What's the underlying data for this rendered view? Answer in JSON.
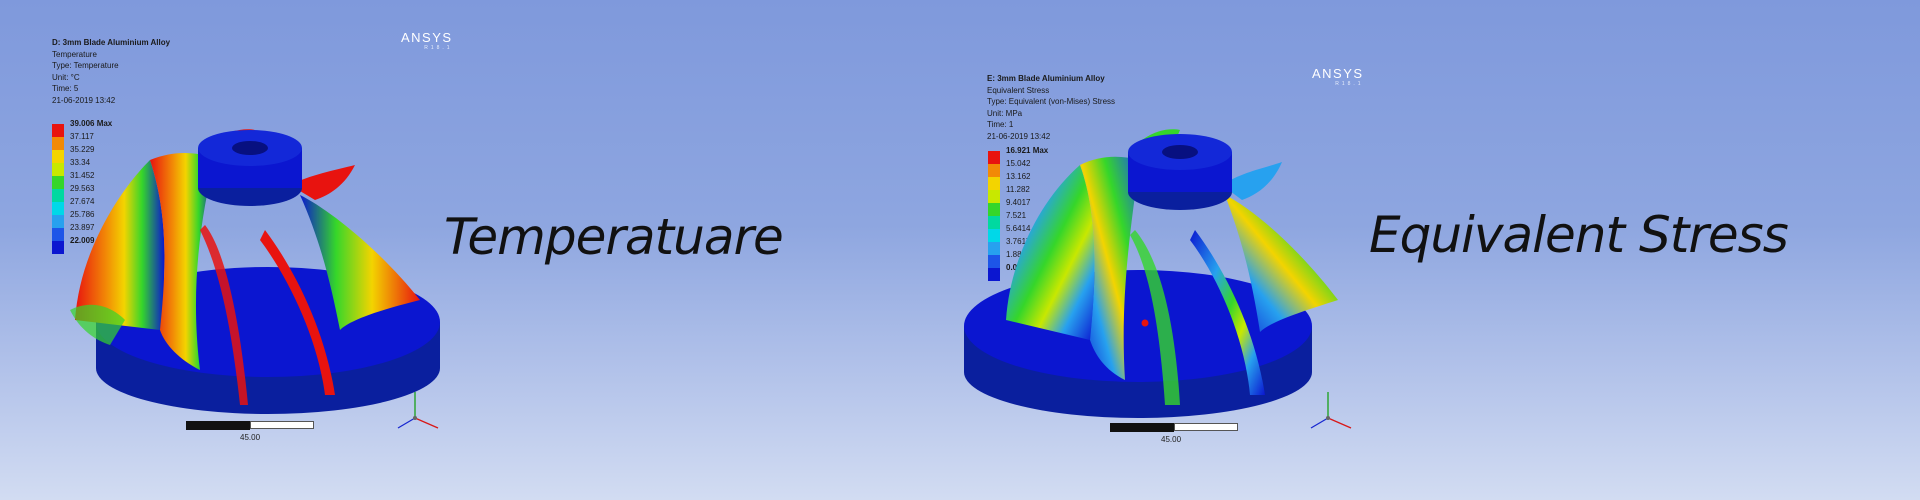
{
  "left": {
    "info": {
      "title": "D: 3mm Blade Aluminium Alloy",
      "line1": "Temperature",
      "line2": "Type: Temperature",
      "line3": "Unit: °C",
      "line4": "Time: 5",
      "line5": "21-06-2019 13:42"
    },
    "logo": "ANSYS",
    "logo_sub": "R18.1",
    "legend": [
      {
        "label": "39.006 Max",
        "color": "#e8130f"
      },
      {
        "label": "37.117",
        "color": "#f28a06"
      },
      {
        "label": "35.229",
        "color": "#f3d400"
      },
      {
        "label": "33.34",
        "color": "#c8e800"
      },
      {
        "label": "31.452",
        "color": "#35d62a"
      },
      {
        "label": "29.563",
        "color": "#00d9a0"
      },
      {
        "label": "27.674",
        "color": "#00d8e8"
      },
      {
        "label": "25.786",
        "color": "#27a1ef"
      },
      {
        "label": "23.897",
        "color": "#1d55e8"
      },
      {
        "label": "22.009 Min",
        "color": "#0b16d0"
      }
    ],
    "heading": "Temperatuare",
    "scale_label": "45.00"
  },
  "right": {
    "info": {
      "title": "E: 3mm Blade Aluminium Alloy",
      "line1": "Equivalent Stress",
      "line2": "Type: Equivalent (von-Mises) Stress",
      "line3": "Unit: MPa",
      "line4": "Time: 1",
      "line5": "21-06-2019 13:42"
    },
    "logo": "ANSYS",
    "logo_sub": "R18.1",
    "legend": [
      {
        "label": "16.921 Max",
        "color": "#e8130f"
      },
      {
        "label": "15.042",
        "color": "#f28a06"
      },
      {
        "label": "13.162",
        "color": "#f3d400"
      },
      {
        "label": "11.282",
        "color": "#c8e800"
      },
      {
        "label": "9.4017",
        "color": "#35d62a"
      },
      {
        "label": "7.521",
        "color": "#00d9a0"
      },
      {
        "label": "5.6414",
        "color": "#00d8e8"
      },
      {
        "label": "3.7617",
        "color": "#27a1ef"
      },
      {
        "label": "1.8841",
        "color": "#1d55e8"
      },
      {
        "label": "0.0044241 Min",
        "color": "#0b16d0"
      }
    ],
    "heading": "Equivalent Stress",
    "scale_label": "45.00"
  }
}
